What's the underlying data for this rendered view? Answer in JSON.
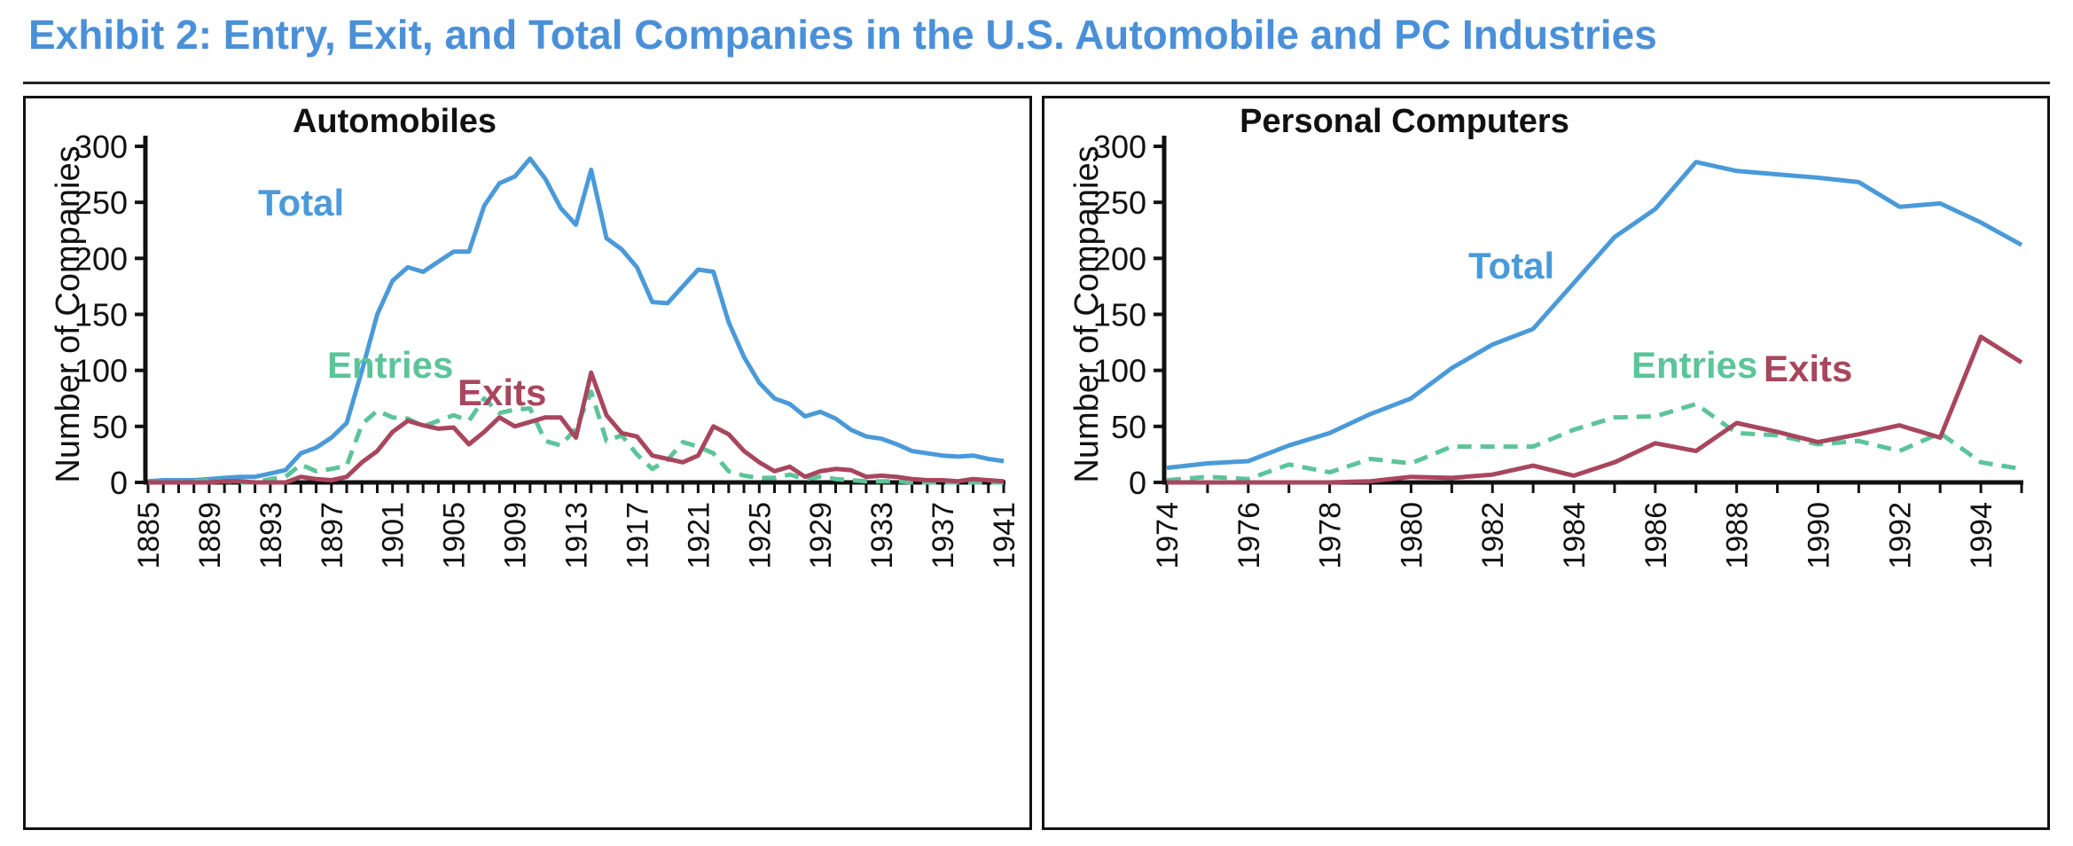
{
  "exhibit_title": "Exhibit 2: Entry, Exit, and Total Companies in the U.S. Automobile and PC Industries",
  "colors": {
    "title": "#4a90d9",
    "total": "#4a9ad9",
    "entries": "#5cc49a",
    "exits": "#a8465e",
    "axis": "#111111"
  },
  "chart_data": [
    {
      "type": "line",
      "title": "Automobiles",
      "ylabel": "Number of Companies",
      "xlabel": "",
      "xlim": [
        1885,
        1941
      ],
      "ylim": [
        0,
        300
      ],
      "xticks": [
        "1885",
        "1889",
        "1893",
        "1897",
        "1901",
        "1905",
        "1909",
        "1913",
        "1917",
        "1921",
        "1925",
        "1929",
        "1933",
        "1937",
        "1941"
      ],
      "yticks": [
        "0",
        "50",
        "100",
        "150",
        "200",
        "250",
        "300"
      ],
      "annotations": [
        {
          "series": "total",
          "text": "Total"
        },
        {
          "series": "entries",
          "text": "Entries"
        },
        {
          "series": "exits",
          "text": "Exits"
        }
      ],
      "series": [
        {
          "key": "total",
          "style": "solid",
          "points": [
            [
              1885,
              1
            ],
            [
              1886,
              2
            ],
            [
              1887,
              2
            ],
            [
              1888,
              2
            ],
            [
              1889,
              3
            ],
            [
              1890,
              4
            ],
            [
              1891,
              5
            ],
            [
              1892,
              5
            ],
            [
              1893,
              8
            ],
            [
              1894,
              11
            ],
            [
              1895,
              26
            ],
            [
              1896,
              31
            ],
            [
              1897,
              40
            ],
            [
              1898,
              53
            ],
            [
              1899,
              100
            ],
            [
              1900,
              150
            ],
            [
              1901,
              180
            ],
            [
              1902,
              192
            ],
            [
              1903,
              188
            ],
            [
              1904,
              197
            ],
            [
              1905,
              206
            ],
            [
              1906,
              206
            ],
            [
              1907,
              247
            ],
            [
              1908,
              267
            ],
            [
              1909,
              273
            ],
            [
              1910,
              289
            ],
            [
              1911,
              271
            ],
            [
              1912,
              245
            ],
            [
              1913,
              230
            ],
            [
              1914,
              279
            ],
            [
              1915,
              218
            ],
            [
              1916,
              208
            ],
            [
              1917,
              192
            ],
            [
              1918,
              161
            ],
            [
              1919,
              160
            ],
            [
              1920,
              175
            ],
            [
              1921,
              190
            ],
            [
              1922,
              188
            ],
            [
              1923,
              143
            ],
            [
              1924,
              112
            ],
            [
              1925,
              89
            ],
            [
              1926,
              75
            ],
            [
              1927,
              70
            ],
            [
              1928,
              59
            ],
            [
              1929,
              63
            ],
            [
              1930,
              57
            ],
            [
              1931,
              47
            ],
            [
              1932,
              41
            ],
            [
              1933,
              39
            ],
            [
              1934,
              34
            ],
            [
              1935,
              28
            ],
            [
              1936,
              26
            ],
            [
              1937,
              24
            ],
            [
              1938,
              23
            ],
            [
              1939,
              24
            ],
            [
              1940,
              21
            ],
            [
              1941,
              19
            ]
          ]
        },
        {
          "key": "entries",
          "style": "dashed",
          "points": [
            [
              1885,
              0
            ],
            [
              1886,
              0
            ],
            [
              1887,
              0
            ],
            [
              1888,
              1
            ],
            [
              1889,
              2
            ],
            [
              1890,
              1
            ],
            [
              1891,
              0
            ],
            [
              1892,
              0
            ],
            [
              1893,
              3
            ],
            [
              1894,
              5
            ],
            [
              1895,
              16
            ],
            [
              1896,
              10
            ],
            [
              1897,
              12
            ],
            [
              1898,
              15
            ],
            [
              1899,
              52
            ],
            [
              1900,
              64
            ],
            [
              1901,
              58
            ],
            [
              1902,
              57
            ],
            [
              1903,
              50
            ],
            [
              1904,
              55
            ],
            [
              1905,
              60
            ],
            [
              1906,
              55
            ],
            [
              1907,
              75
            ],
            [
              1908,
              62
            ],
            [
              1909,
              65
            ],
            [
              1910,
              66
            ],
            [
              1911,
              37
            ],
            [
              1912,
              33
            ],
            [
              1913,
              48
            ],
            [
              1914,
              81
            ],
            [
              1915,
              37
            ],
            [
              1916,
              42
            ],
            [
              1917,
              25
            ],
            [
              1918,
              12
            ],
            [
              1919,
              20
            ],
            [
              1920,
              36
            ],
            [
              1921,
              32
            ],
            [
              1922,
              26
            ],
            [
              1923,
              10
            ],
            [
              1924,
              6
            ],
            [
              1925,
              4
            ],
            [
              1926,
              4
            ],
            [
              1927,
              7
            ],
            [
              1928,
              3
            ],
            [
              1929,
              5
            ],
            [
              1930,
              3
            ],
            [
              1931,
              2
            ],
            [
              1932,
              1
            ],
            [
              1933,
              1
            ],
            [
              1934,
              1
            ],
            [
              1935,
              0
            ],
            [
              1936,
              0
            ],
            [
              1937,
              0
            ],
            [
              1938,
              0
            ],
            [
              1939,
              0
            ],
            [
              1940,
              0
            ],
            [
              1941,
              0
            ]
          ]
        },
        {
          "key": "exits",
          "style": "solid",
          "points": [
            [
              1885,
              0
            ],
            [
              1886,
              0
            ],
            [
              1887,
              0
            ],
            [
              1888,
              0
            ],
            [
              1889,
              0
            ],
            [
              1890,
              1
            ],
            [
              1891,
              1
            ],
            [
              1892,
              0
            ],
            [
              1893,
              0
            ],
            [
              1894,
              0
            ],
            [
              1895,
              5
            ],
            [
              1896,
              3
            ],
            [
              1897,
              2
            ],
            [
              1898,
              5
            ],
            [
              1899,
              18
            ],
            [
              1900,
              28
            ],
            [
              1901,
              45
            ],
            [
              1902,
              55
            ],
            [
              1903,
              51
            ],
            [
              1904,
              48
            ],
            [
              1905,
              49
            ],
            [
              1906,
              34
            ],
            [
              1907,
              45
            ],
            [
              1908,
              58
            ],
            [
              1909,
              50
            ],
            [
              1910,
              54
            ],
            [
              1911,
              58
            ],
            [
              1912,
              58
            ],
            [
              1913,
              40
            ],
            [
              1914,
              98
            ],
            [
              1915,
              60
            ],
            [
              1916,
              44
            ],
            [
              1917,
              41
            ],
            [
              1918,
              24
            ],
            [
              1919,
              21
            ],
            [
              1920,
              18
            ],
            [
              1921,
              24
            ],
            [
              1922,
              50
            ],
            [
              1923,
              43
            ],
            [
              1924,
              28
            ],
            [
              1925,
              18
            ],
            [
              1926,
              10
            ],
            [
              1927,
              14
            ],
            [
              1928,
              5
            ],
            [
              1929,
              10
            ],
            [
              1930,
              12
            ],
            [
              1931,
              11
            ],
            [
              1932,
              5
            ],
            [
              1933,
              6
            ],
            [
              1934,
              5
            ],
            [
              1935,
              3
            ],
            [
              1936,
              2
            ],
            [
              1937,
              2
            ],
            [
              1938,
              1
            ],
            [
              1939,
              3
            ],
            [
              1940,
              2
            ],
            [
              1941,
              1
            ]
          ]
        }
      ]
    },
    {
      "type": "line",
      "title": "Personal Computers",
      "ylabel": "Number of Companies",
      "xlabel": "",
      "xlim": [
        1974,
        1995
      ],
      "ylim": [
        0,
        300
      ],
      "xticks": [
        "1974",
        "1976",
        "1978",
        "1980",
        "1982",
        "1984",
        "1986",
        "1988",
        "1990",
        "1992",
        "1994"
      ],
      "yticks": [
        "0",
        "50",
        "100",
        "150",
        "200",
        "250",
        "300"
      ],
      "annotations": [
        {
          "series": "total",
          "text": "Total"
        },
        {
          "series": "entries",
          "text": "Entries"
        },
        {
          "series": "exits",
          "text": "Exits"
        }
      ],
      "series": [
        {
          "key": "total",
          "style": "solid",
          "points": [
            [
              1974,
              13
            ],
            [
              1975,
              17
            ],
            [
              1976,
              19
            ],
            [
              1977,
              33
            ],
            [
              1978,
              44
            ],
            [
              1979,
              61
            ],
            [
              1980,
              75
            ],
            [
              1981,
              102
            ],
            [
              1982,
              123
            ],
            [
              1983,
              137
            ],
            [
              1984,
              178
            ],
            [
              1985,
              219
            ],
            [
              1986,
              244
            ],
            [
              1987,
              286
            ],
            [
              1988,
              278
            ],
            [
              1989,
              275
            ],
            [
              1990,
              272
            ],
            [
              1991,
              268
            ],
            [
              1992,
              246
            ],
            [
              1993,
              249
            ],
            [
              1994,
              232
            ],
            [
              1995,
              212
            ]
          ]
        },
        {
          "key": "entries",
          "style": "dashed",
          "points": [
            [
              1974,
              2
            ],
            [
              1975,
              5
            ],
            [
              1976,
              3
            ],
            [
              1977,
              16
            ],
            [
              1978,
              9
            ],
            [
              1979,
              21
            ],
            [
              1980,
              17
            ],
            [
              1981,
              32
            ],
            [
              1982,
              32
            ],
            [
              1983,
              32
            ],
            [
              1984,
              47
            ],
            [
              1985,
              58
            ],
            [
              1986,
              59
            ],
            [
              1987,
              70
            ],
            [
              1988,
              44
            ],
            [
              1989,
              42
            ],
            [
              1990,
              34
            ],
            [
              1991,
              37
            ],
            [
              1992,
              28
            ],
            [
              1993,
              44
            ],
            [
              1994,
              18
            ],
            [
              1995,
              12
            ]
          ]
        },
        {
          "key": "exits",
          "style": "solid",
          "points": [
            [
              1974,
              0
            ],
            [
              1975,
              0
            ],
            [
              1976,
              0
            ],
            [
              1977,
              0
            ],
            [
              1978,
              0
            ],
            [
              1979,
              1
            ],
            [
              1980,
              5
            ],
            [
              1981,
              4
            ],
            [
              1982,
              7
            ],
            [
              1983,
              15
            ],
            [
              1984,
              6
            ],
            [
              1985,
              18
            ],
            [
              1986,
              35
            ],
            [
              1987,
              28
            ],
            [
              1988,
              53
            ],
            [
              1989,
              45
            ],
            [
              1990,
              36
            ],
            [
              1991,
              43
            ],
            [
              1992,
              51
            ],
            [
              1993,
              40
            ],
            [
              1994,
              130
            ],
            [
              1995,
              107
            ]
          ]
        }
      ]
    }
  ]
}
